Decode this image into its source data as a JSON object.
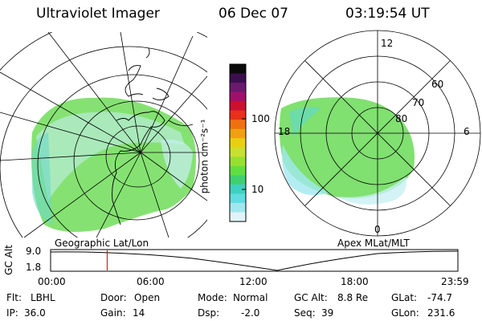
{
  "header": {
    "instrument": "Ultraviolet Imager",
    "date": "06 Dec 07",
    "time": "03:19:54 UT"
  },
  "left_map": {
    "caption": "Geographic Lat/Lon"
  },
  "right_map": {
    "caption": "Apex MLat/MLT",
    "mlt_labels": [
      "12",
      "18",
      "6",
      "0"
    ],
    "lat_labels": [
      "60",
      "70",
      "80"
    ]
  },
  "colorbar": {
    "unit_label": "photon cm⁻²s⁻¹",
    "ticks": [
      "100",
      "10"
    ],
    "colors": [
      "#0a0a0a",
      "#3b0f4f",
      "#6a1a6e",
      "#a0106a",
      "#cc1030",
      "#e8301a",
      "#f07010",
      "#f0a010",
      "#e8d010",
      "#c8e030",
      "#98e030",
      "#60e040",
      "#40d070",
      "#40d0c0",
      "#60dde0",
      "#a0e8f0",
      "#e0f4f8"
    ]
  },
  "timeline": {
    "ylabel": "GC Alt",
    "yticks": [
      "9.0",
      "1.8"
    ],
    "xticks": [
      "00:00",
      "06:00",
      "12:00",
      "18:00",
      "23:59"
    ],
    "marker_time": "03:19:54",
    "marker_color": "#cc0000"
  },
  "info": {
    "flt_label": "Flt:",
    "flt_value": "LBHL",
    "door_label": "Door:",
    "door_value": "Open",
    "mode_label": "Mode:",
    "mode_value": "Normal",
    "gcalt_label": "GC Alt:",
    "gcalt_value": "8.8 Re",
    "glat_label": "GLat:",
    "glat_value": "-74.7",
    "ip_label": "IP:",
    "ip_value": "36.0",
    "gain_label": "Gain:",
    "gain_value": "14",
    "dsp_label": "Dsp:",
    "dsp_value": "-2.0",
    "seq_label": "Seq:",
    "seq_value": "39",
    "glon_label": "GLon:",
    "glon_value": "231.6"
  }
}
